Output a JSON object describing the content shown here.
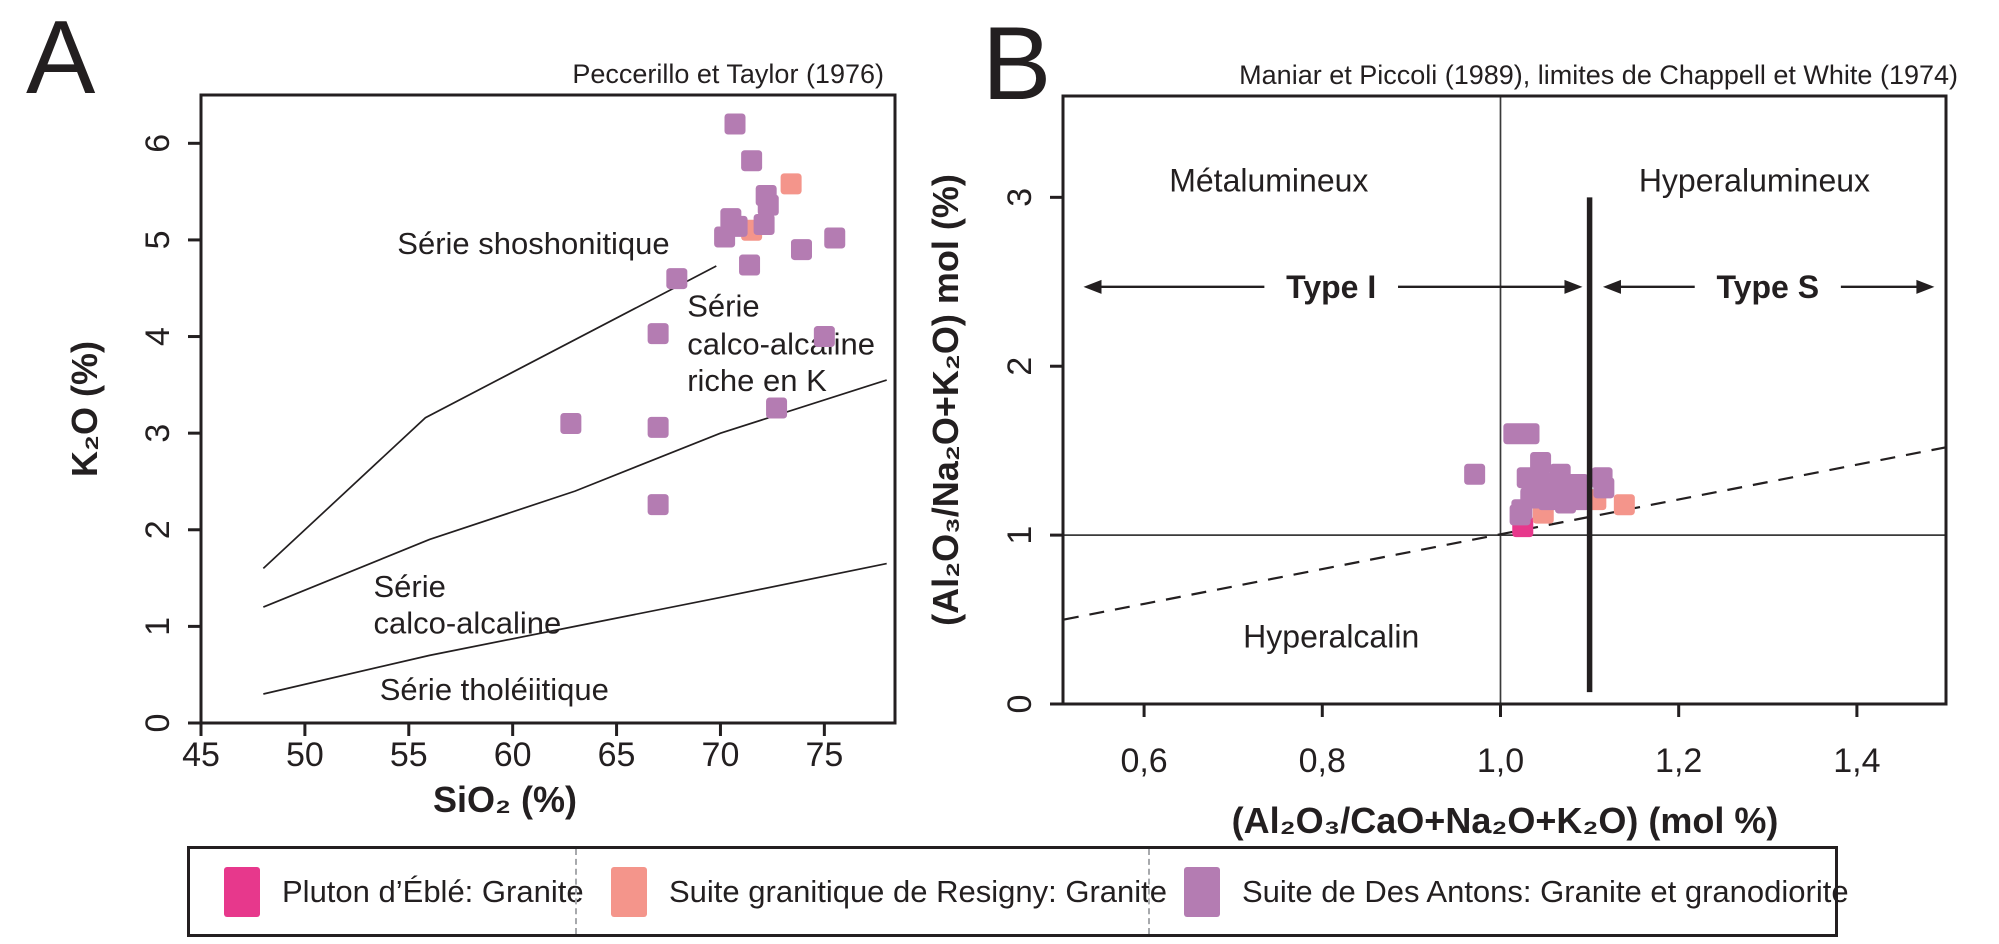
{
  "figure": {
    "panel_a_letter": "A",
    "panel_b_letter": "B"
  },
  "colors": {
    "eble_pink": "#e7388c",
    "resigny_salmon": "#f4958b",
    "des_antons_purple": "#b47cb2",
    "ink": "#231f20",
    "thin_line": "#3a3a3a",
    "divider_gray": "#a7a9ac"
  },
  "legend": {
    "items": [
      {
        "label": "Pluton d’Éblé: Granite",
        "color_key": "eble_pink"
      },
      {
        "label": "Suite granitique de Resigny: Granite",
        "color_key": "resigny_salmon"
      },
      {
        "label": "Suite de Des Antons: Granite et granodiorite",
        "color_key": "des_antons_purple"
      }
    ]
  },
  "chart_data": [
    {
      "id": "A",
      "type": "scatter",
      "title": "Peccerillo et Taylor (1976)",
      "xlabel": "SiO₂ (%)",
      "ylabel": "K₂O (%)",
      "xlim": [
        45,
        78.4
      ],
      "ylim": [
        0,
        6.5
      ],
      "grid": false,
      "xticks": [
        {
          "v": 45,
          "label": "45"
        },
        {
          "v": 50,
          "label": "50"
        },
        {
          "v": 55,
          "label": "55"
        },
        {
          "v": 60,
          "label": "60"
        },
        {
          "v": 65,
          "label": "65"
        },
        {
          "v": 70,
          "label": "70"
        },
        {
          "v": 75,
          "label": "75"
        }
      ],
      "yticks": [
        {
          "v": 0,
          "label": "0"
        },
        {
          "v": 1,
          "label": "1"
        },
        {
          "v": 2,
          "label": "2"
        },
        {
          "v": 3,
          "label": "3"
        },
        {
          "v": 4,
          "label": "4"
        },
        {
          "v": 5,
          "label": "5"
        },
        {
          "v": 6,
          "label": "6"
        }
      ],
      "boundary_lines": [
        {
          "name": "shoshonitic-boundary",
          "points": [
            [
              48,
              1.6
            ],
            [
              55.8,
              3.16
            ],
            [
              69.8,
              4.73
            ]
          ]
        },
        {
          "name": "high-k-boundary",
          "points": [
            [
              48,
              1.2
            ],
            [
              56,
              1.9
            ],
            [
              63,
              2.4
            ],
            [
              70,
              3.0
            ],
            [
              78,
              3.55
            ]
          ]
        },
        {
          "name": "tholeiitic-boundary",
          "points": [
            [
              48,
              0.3
            ],
            [
              56,
              0.7
            ],
            [
              63,
              1.0
            ],
            [
              70,
              1.3
            ],
            [
              78,
              1.65
            ]
          ]
        }
      ],
      "annotations": [
        {
          "text": "Série shoshonitique",
          "x": 61.0,
          "y": 4.97,
          "anchor": "middle",
          "bold": false
        },
        {
          "text": "Série",
          "x": 68.4,
          "y": 4.32,
          "anchor": "start",
          "bold": false
        },
        {
          "text": "calco-alcaline",
          "x": 68.4,
          "y": 3.93,
          "anchor": "start",
          "bold": false
        },
        {
          "text": "riche en K",
          "x": 68.4,
          "y": 3.55,
          "anchor": "start",
          "bold": false
        },
        {
          "text": "Série",
          "x": 53.3,
          "y": 1.42,
          "anchor": "start",
          "bold": false
        },
        {
          "text": "calco-alcaline",
          "x": 53.3,
          "y": 1.04,
          "anchor": "start",
          "bold": false
        },
        {
          "text": "Série tholéiitique",
          "x": 53.6,
          "y": 0.35,
          "anchor": "start",
          "bold": false
        }
      ],
      "series": [
        {
          "name": "Suite granitique de Resigny: Granite",
          "color_key": "resigny_salmon",
          "points": [
            [
              73.4,
              5.58
            ],
            [
              71.5,
              5.1
            ]
          ]
        },
        {
          "name": "Suite de Des Antons: Granite et granodiorite",
          "color_key": "des_antons_purple",
          "points": [
            [
              70.7,
              6.2
            ],
            [
              71.5,
              5.82
            ],
            [
              72.2,
              5.46
            ],
            [
              72.3,
              5.36
            ],
            [
              72.1,
              5.16
            ],
            [
              70.2,
              5.03
            ],
            [
              70.5,
              5.22
            ],
            [
              70.8,
              5.14
            ],
            [
              73.9,
              4.9
            ],
            [
              75.5,
              5.02
            ],
            [
              71.4,
              4.74
            ],
            [
              67.9,
              4.6
            ],
            [
              67.0,
              4.03
            ],
            [
              75.0,
              4.0
            ],
            [
              62.8,
              3.1
            ],
            [
              67.0,
              3.06
            ],
            [
              72.7,
              3.26
            ],
            [
              67.0,
              2.26
            ]
          ]
        }
      ]
    },
    {
      "id": "B",
      "type": "scatter",
      "title": "Maniar et Piccoli (1989), limites de Chappell et White (1974)",
      "xlabel": "(Al₂O₃/CaO+Na₂O+K₂O) (mol %)",
      "ylabel": "(Al₂O₃/Na₂O+K₂O) mol (%)",
      "xlim": [
        0.509,
        1.5
      ],
      "ylim": [
        0,
        3.6
      ],
      "grid": false,
      "xticks": [
        {
          "v": 0.6,
          "label": "0,6"
        },
        {
          "v": 0.8,
          "label": "0,8"
        },
        {
          "v": 1.0,
          "label": "1,0"
        },
        {
          "v": 1.2,
          "label": "1,2"
        },
        {
          "v": 1.4,
          "label": "1,4"
        }
      ],
      "yticks": [
        {
          "v": 0,
          "label": "0"
        },
        {
          "v": 1,
          "label": "1"
        },
        {
          "v": 2,
          "label": "2"
        },
        {
          "v": 3,
          "label": "3"
        }
      ],
      "ref_lines": [
        {
          "kind": "v-thin",
          "x": 1.0
        },
        {
          "kind": "h-thin",
          "y": 1.0
        },
        {
          "kind": "dashed",
          "points": [
            [
              0.51,
              0.5
            ],
            [
              1.5,
              1.52
            ]
          ]
        },
        {
          "kind": "v-thick",
          "x": 1.1,
          "y1": 0.07,
          "y2": 3.0
        }
      ],
      "annotations": [
        {
          "text": "Métalumineux",
          "x": 0.74,
          "y": 3.1,
          "anchor": "middle",
          "bold": false
        },
        {
          "text": "Hyperalumineux",
          "x": 1.285,
          "y": 3.1,
          "anchor": "middle",
          "bold": false
        },
        {
          "text": "Type I",
          "x": 0.81,
          "y": 2.47,
          "anchor": "middle",
          "bold": true
        },
        {
          "text": "Type S",
          "x": 1.3,
          "y": 2.47,
          "anchor": "middle",
          "bold": true
        },
        {
          "text": "Hyperalcalin",
          "x": 0.81,
          "y": 0.4,
          "anchor": "middle",
          "bold": false
        }
      ],
      "arrows": [
        {
          "x_from": 0.735,
          "x_to": 0.532,
          "y": 2.47,
          "dir": "left"
        },
        {
          "x_from": 0.885,
          "x_to": 1.092,
          "y": 2.47,
          "dir": "right"
        },
        {
          "x_from": 1.218,
          "x_to": 1.115,
          "y": 2.47,
          "dir": "left"
        },
        {
          "x_from": 1.382,
          "x_to": 1.487,
          "y": 2.47,
          "dir": "right"
        }
      ],
      "series": [
        {
          "name": "Pluton d’Éblé: Granite",
          "color_key": "eble_pink",
          "points": [
            [
              1.025,
              1.05
            ]
          ]
        },
        {
          "name": "Suite granitique de Resigny: Granite",
          "color_key": "resigny_salmon",
          "points": [
            [
              1.107,
              1.21
            ],
            [
              1.139,
              1.18
            ],
            [
              1.048,
              1.13
            ]
          ]
        },
        {
          "name": "Suite de Des Antons: Granite et granodiorite",
          "color_key": "des_antons_purple",
          "points": [
            [
              1.015,
              1.6
            ],
            [
              1.032,
              1.6
            ],
            [
              0.971,
              1.36
            ],
            [
              1.045,
              1.43
            ],
            [
              1.067,
              1.36
            ],
            [
              1.03,
              1.34
            ],
            [
              1.051,
              1.31
            ],
            [
              1.071,
              1.28
            ],
            [
              1.087,
              1.3
            ],
            [
              1.034,
              1.22
            ],
            [
              1.054,
              1.21
            ],
            [
              1.073,
              1.19
            ],
            [
              1.088,
              1.21
            ],
            [
              1.024,
              1.15
            ],
            [
              1.022,
              1.12
            ],
            [
              1.114,
              1.34
            ],
            [
              1.116,
              1.28
            ]
          ]
        }
      ]
    }
  ]
}
